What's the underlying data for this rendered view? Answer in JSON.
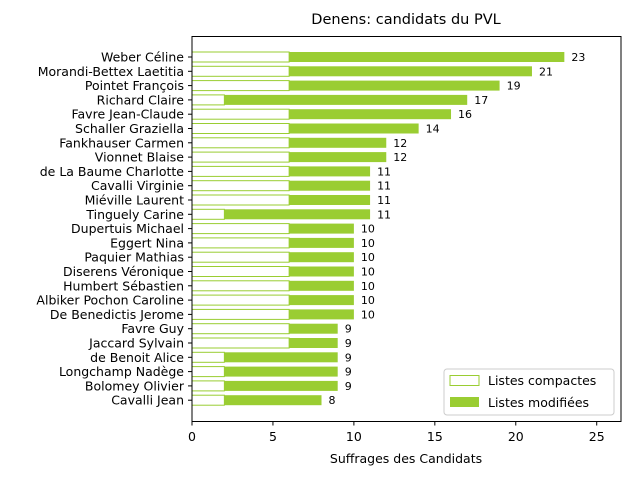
{
  "chart_data": {
    "type": "bar",
    "orientation": "horizontal",
    "stacked": true,
    "title": "Denens: candidats du PVL",
    "xlabel": "Suffrages des Candidats",
    "ylabel": "",
    "xlim": [
      0,
      26.5
    ],
    "xticks": [
      0,
      5,
      10,
      15,
      20,
      25
    ],
    "grid": false,
    "legend_position": "lower-right",
    "colors": {
      "compact_edge": "#9acd32",
      "modified_fill": "#9acd32",
      "axis": "#000000"
    },
    "categories": [
      "Weber Céline",
      "Morandi-Bettex Laetitia",
      "Pointet François",
      "Richard Claire",
      "Favre Jean-Claude",
      "Schaller Graziella",
      "Fankhauser Carmen",
      "Vionnet Blaise",
      "de La Baume Charlotte",
      "Cavalli Virginie",
      "Miéville Laurent",
      "Tinguely Carine",
      "Dupertuis Michael",
      "Eggert Nina",
      "Paquier Mathias",
      "Diserens Véronique",
      "Humbert Sébastien",
      "Albiker Pochon Caroline",
      "De Benedictis Jerome",
      "Favre Guy",
      "Jaccard Sylvain",
      "de Benoit Alice",
      "Longchamp Nadège",
      "Bolomey Olivier",
      "Cavalli Jean"
    ],
    "series": [
      {
        "name": "Listes compactes",
        "values": [
          6,
          6,
          6,
          2,
          6,
          6,
          6,
          6,
          6,
          6,
          6,
          2,
          6,
          6,
          6,
          6,
          6,
          6,
          6,
          6,
          6,
          2,
          2,
          2,
          2
        ]
      },
      {
        "name": "Listes modifiées",
        "values": [
          17,
          15,
          13,
          15,
          10,
          8,
          6,
          6,
          5,
          5,
          5,
          9,
          4,
          4,
          4,
          4,
          4,
          4,
          4,
          3,
          3,
          7,
          7,
          7,
          6
        ]
      }
    ],
    "totals": [
      "23",
      "21",
      "19",
      "17",
      "16",
      "14",
      "12",
      "12",
      "11",
      "11",
      "11",
      "11",
      "10",
      "10",
      "10",
      "10",
      "10",
      "10",
      "10",
      "9",
      "9",
      "9",
      "9",
      "9",
      "8"
    ]
  }
}
